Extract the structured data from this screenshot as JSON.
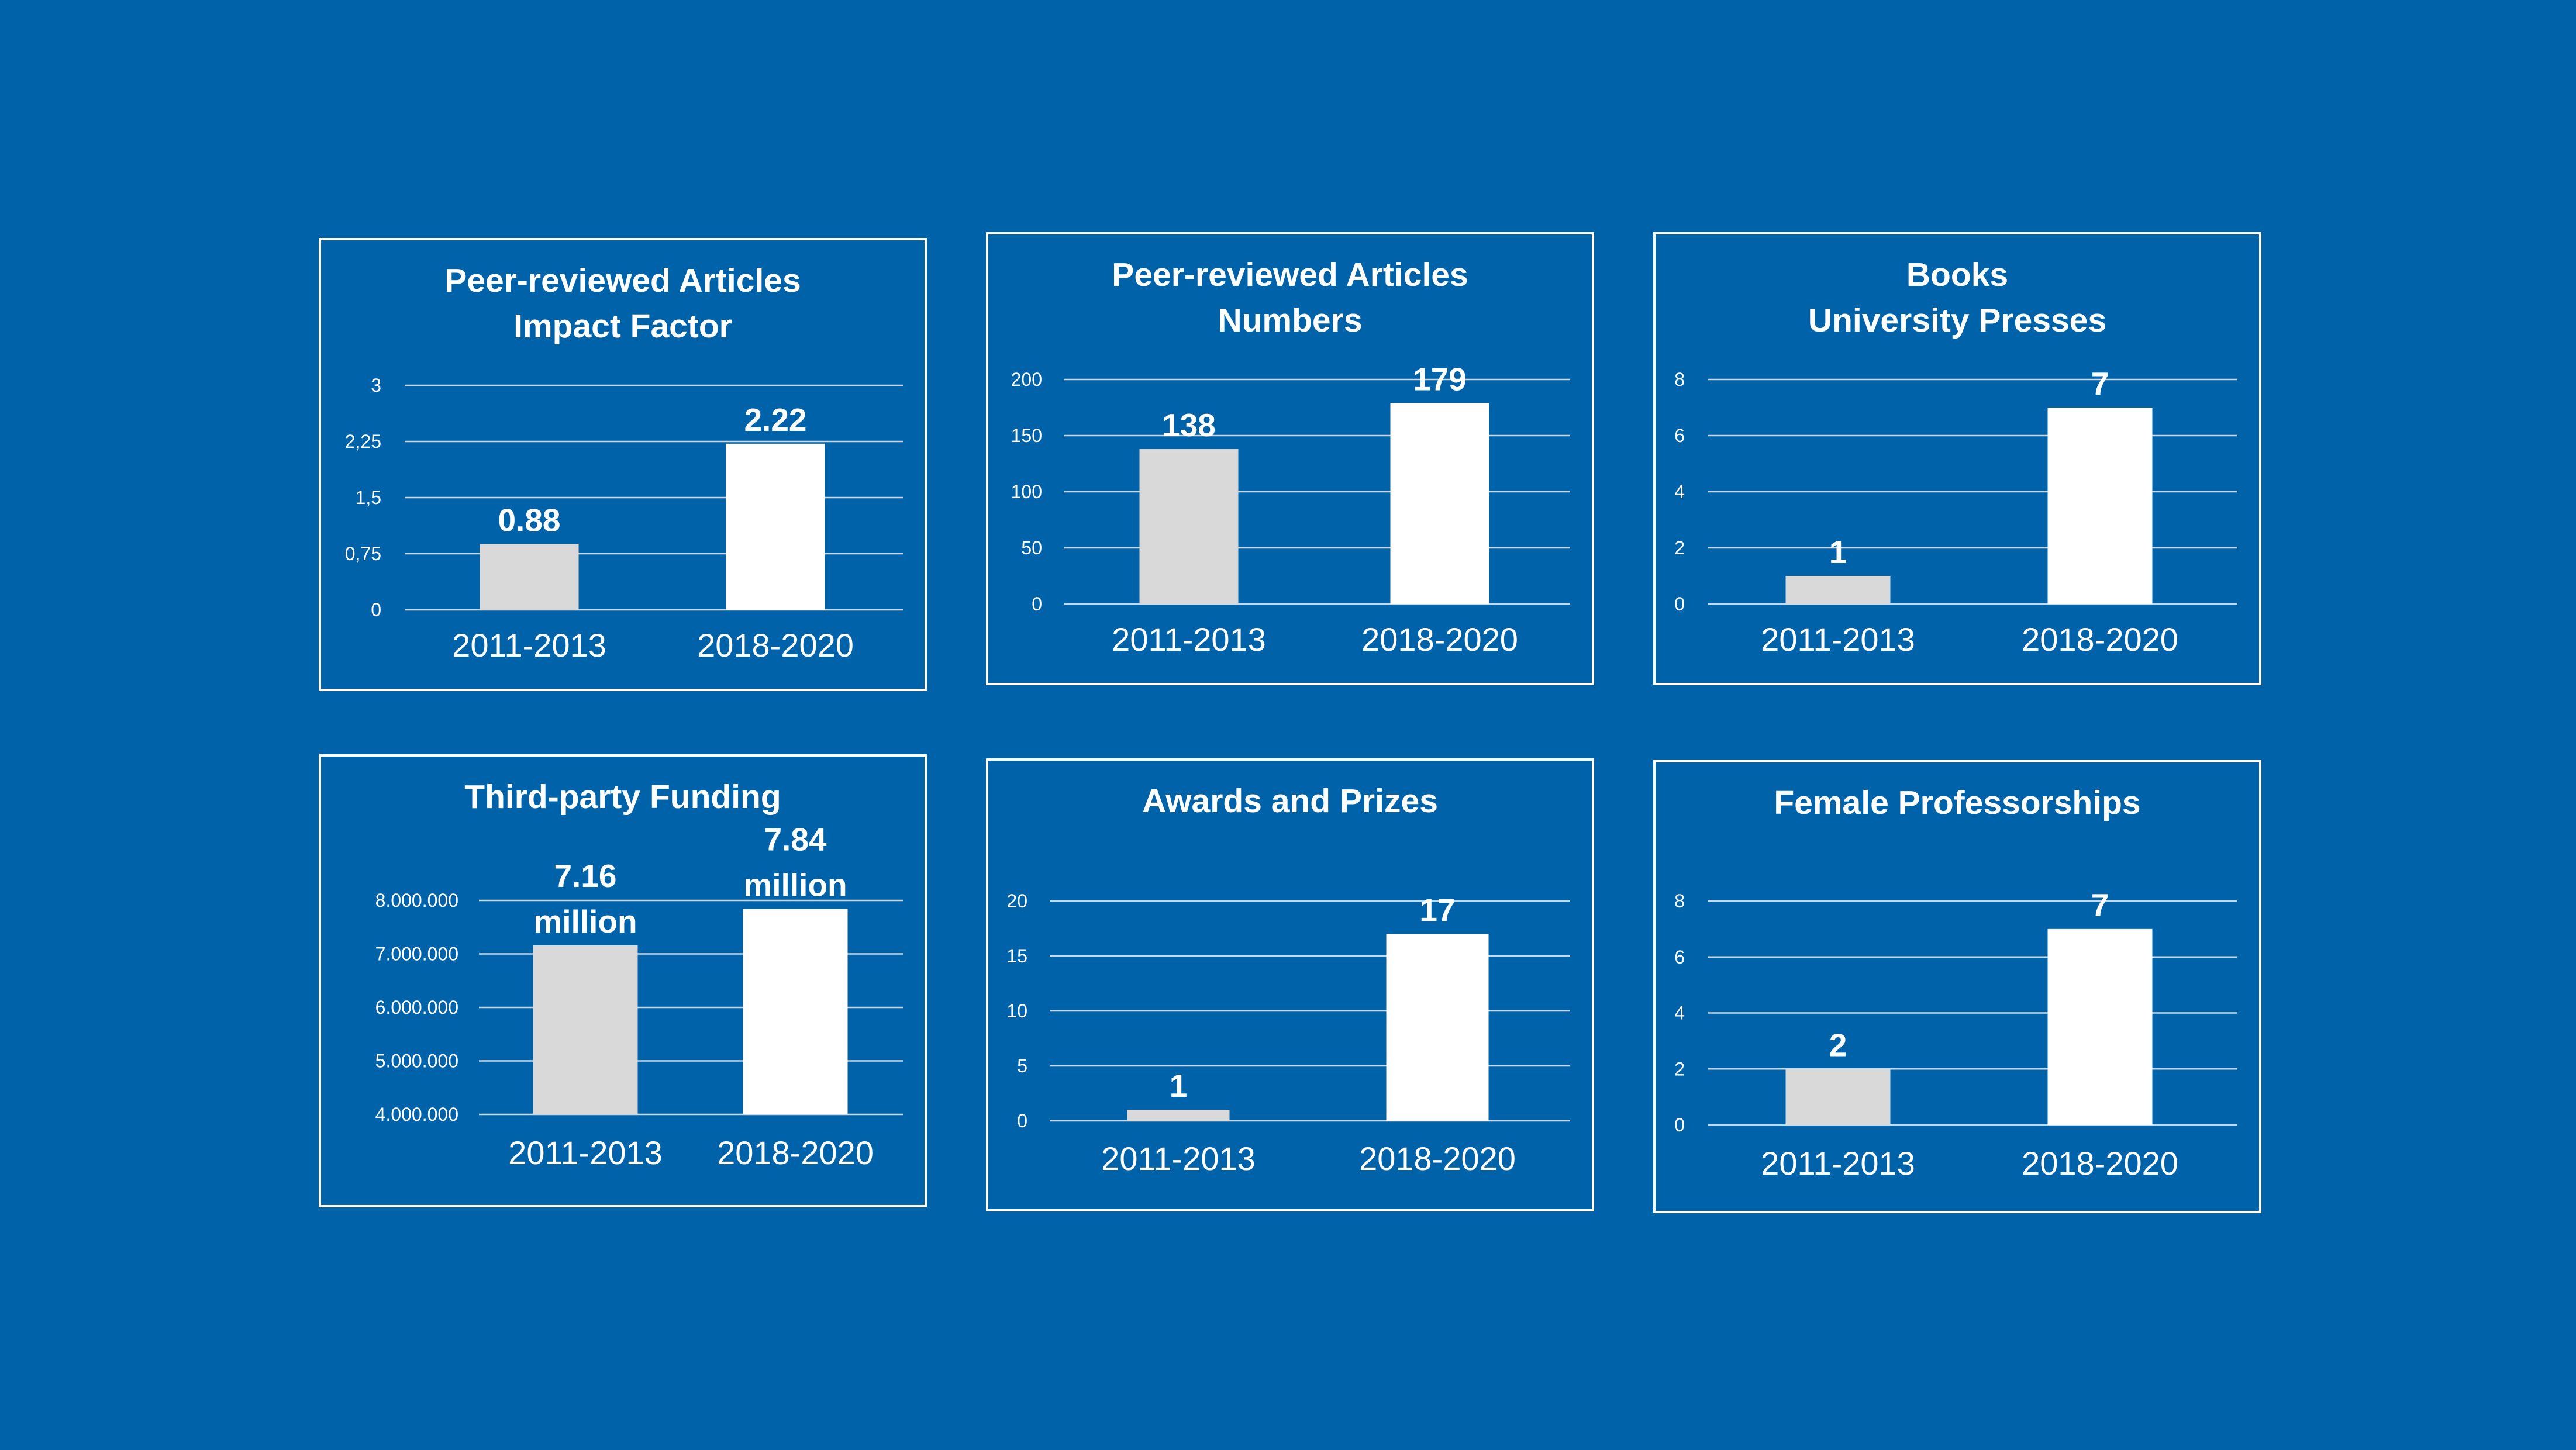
{
  "colors": {
    "background": "#0062a9",
    "bar_before": "#d9d9d9",
    "bar_after": "#ffffff",
    "grid": "#c8d7e6",
    "text": "#ffffff"
  },
  "chart_data": [
    {
      "id": "p1",
      "type": "bar",
      "title": "Peer-reviewed Articles\nImpact Factor",
      "categories": [
        "2011-2013",
        "2018-2020"
      ],
      "values": [
        0.88,
        2.22
      ],
      "data_labels": [
        "0.88",
        "2.22"
      ],
      "ylim": [
        0,
        3
      ],
      "yticks": [
        0,
        0.75,
        1.5,
        2.25,
        3
      ],
      "ytick_labels": [
        "0",
        "0,75",
        "1,5",
        "2,25",
        "3"
      ]
    },
    {
      "id": "p2",
      "type": "bar",
      "title": "Peer-reviewed Articles\nNumbers",
      "categories": [
        "2011-2013",
        "2018-2020"
      ],
      "values": [
        138,
        179
      ],
      "data_labels": [
        "138",
        "179"
      ],
      "ylim": [
        0,
        200
      ],
      "yticks": [
        0,
        50,
        100,
        150,
        200
      ],
      "ytick_labels": [
        "0",
        "50",
        "100",
        "150",
        "200"
      ]
    },
    {
      "id": "p3",
      "type": "bar",
      "title": "Books\nUniversity Presses",
      "categories": [
        "2011-2013",
        "2018-2020"
      ],
      "values": [
        1,
        7
      ],
      "data_labels": [
        "1",
        "7"
      ],
      "ylim": [
        0,
        8
      ],
      "yticks": [
        0,
        2,
        4,
        6,
        8
      ],
      "ytick_labels": [
        "0",
        "2",
        "4",
        "6",
        "8"
      ]
    },
    {
      "id": "p4",
      "type": "bar",
      "title": "Third-party Funding",
      "categories": [
        "2011-2013",
        "2018-2020"
      ],
      "values": [
        7160000,
        7840000
      ],
      "data_labels": [
        "7.16\nmillion",
        "7.84\nmillion"
      ],
      "ylim": [
        4000000,
        8000000
      ],
      "yticks": [
        4000000,
        5000000,
        6000000,
        7000000,
        8000000
      ],
      "ytick_labels": [
        "4.000.000",
        "5.000.000",
        "6.000.000",
        "7.000.000",
        "8.000.000"
      ]
    },
    {
      "id": "p5",
      "type": "bar",
      "title": "Awards and Prizes",
      "categories": [
        "2011-2013",
        "2018-2020"
      ],
      "values": [
        1,
        17
      ],
      "data_labels": [
        "1",
        "17"
      ],
      "ylim": [
        0,
        20
      ],
      "yticks": [
        0,
        5,
        10,
        15,
        20
      ],
      "ytick_labels": [
        "0",
        "5",
        "10",
        "15",
        "20"
      ]
    },
    {
      "id": "p6",
      "type": "bar",
      "title": "Female Professorships",
      "categories": [
        "2011-2013",
        "2018-2020"
      ],
      "values": [
        2,
        7
      ],
      "data_labels": [
        "2",
        "7"
      ],
      "ylim": [
        0,
        8
      ],
      "yticks": [
        0,
        2,
        4,
        6,
        8
      ],
      "ytick_labels": [
        "0",
        "2",
        "4",
        "6",
        "8"
      ]
    }
  ]
}
